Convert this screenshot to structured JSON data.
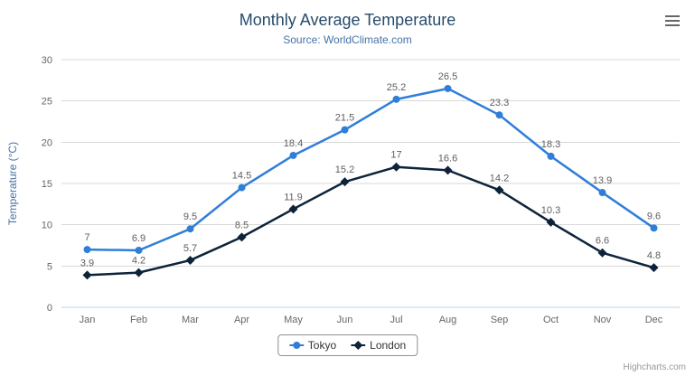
{
  "header": {
    "title": "Monthly Average Temperature",
    "subtitle": "Source: WorldClimate.com"
  },
  "icons": {
    "context_menu": "hamburger-icon"
  },
  "credits": "Highcharts.com",
  "chart_data": {
    "type": "line",
    "title": "Monthly Average Temperature",
    "subtitle": "Source: WorldClimate.com",
    "categories": [
      "Jan",
      "Feb",
      "Mar",
      "Apr",
      "May",
      "Jun",
      "Jul",
      "Aug",
      "Sep",
      "Oct",
      "Nov",
      "Dec"
    ],
    "series": [
      {
        "name": "Tokyo",
        "color": "#2f7ed8",
        "marker": "circle",
        "values": [
          7,
          6.9,
          9.5,
          14.5,
          18.4,
          21.5,
          25.2,
          26.5,
          23.3,
          18.3,
          13.9,
          9.6
        ]
      },
      {
        "name": "London",
        "color": "#0d233a",
        "marker": "diamond",
        "values": [
          3.9,
          4.2,
          5.7,
          8.5,
          11.9,
          15.2,
          17,
          16.6,
          14.2,
          10.3,
          6.6,
          4.8
        ]
      }
    ],
    "xlabel": "",
    "ylabel": "Temperature (°C)",
    "ylim": [
      0,
      30
    ],
    "ytick_interval": 5,
    "grid": true,
    "data_labels": true,
    "legend_position": "bottom"
  }
}
